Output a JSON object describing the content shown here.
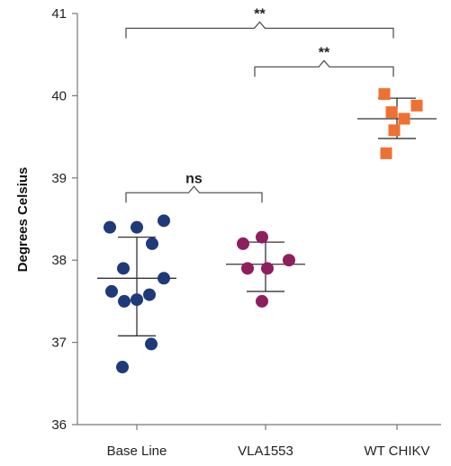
{
  "chart_data": {
    "type": "scatter",
    "title": "",
    "xlabel": "",
    "ylabel": "Degrees Celsius",
    "ylim": [
      36,
      41
    ],
    "yticks": [
      36,
      37,
      38,
      39,
      40,
      41
    ],
    "grid": false,
    "legend": "none",
    "categories": [
      "Base Line",
      "VLA1553",
      "WT CHIKV"
    ],
    "series": [
      {
        "category": "Base Line",
        "color": "#1f3a78",
        "marker": "circle",
        "points": [
          38.4,
          38.4,
          38.48,
          37.9,
          38.2,
          37.62,
          37.5,
          37.52,
          37.58,
          37.78,
          36.98,
          36.7
        ],
        "mean": 37.78,
        "sd_low": 37.08,
        "sd_high": 38.28
      },
      {
        "category": "VLA1553",
        "color": "#8e1f5f",
        "marker": "circle",
        "points": [
          38.2,
          38.28,
          37.9,
          37.9,
          38.0,
          37.5
        ],
        "mean": 37.95,
        "sd_low": 37.62,
        "sd_high": 38.22
      },
      {
        "category": "WT CHIKV",
        "color": "#ee7132",
        "marker": "square",
        "points": [
          40.02,
          39.88,
          39.8,
          39.72,
          39.58,
          39.3
        ],
        "mean": 39.72,
        "sd_low": 39.48,
        "sd_high": 39.97
      }
    ],
    "annotations": [
      {
        "label": "**",
        "from": "Base Line",
        "to": "WT CHIKV",
        "level": 40.82
      },
      {
        "label": "**",
        "from": "VLA1553",
        "to": "WT CHIKV",
        "level": 40.35
      },
      {
        "label": "ns",
        "from": "Base Line",
        "to": "VLA1553",
        "level": 38.82
      }
    ]
  }
}
